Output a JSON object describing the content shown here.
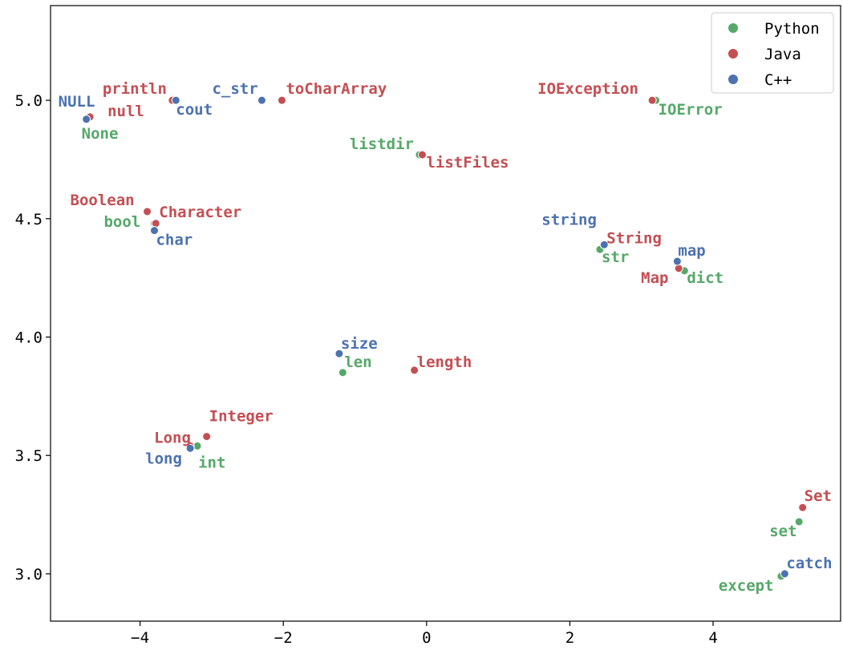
{
  "chart_data": {
    "type": "scatter",
    "title": "",
    "xlabel": "",
    "ylabel": "",
    "xlim": [
      -5.25,
      5.78
    ],
    "ylim": [
      2.8,
      5.4
    ],
    "xticks": [
      -4,
      -2,
      0,
      2,
      4
    ],
    "yticks": [
      3.0,
      3.5,
      4.0,
      4.5,
      5.0
    ],
    "xtick_labels": [
      "−4",
      "−2",
      "0",
      "2",
      "4"
    ],
    "ytick_labels": [
      "3.0",
      "3.5",
      "4.0",
      "4.5",
      "5.0"
    ],
    "grid": false,
    "legend_position": "top-right",
    "series": [
      {
        "name": "Python",
        "color": "#55a868",
        "points": [
          {
            "label": "None",
            "x": -4.75,
            "y": 4.92
          },
          {
            "label": "listdir",
            "x": -0.1,
            "y": 4.77
          },
          {
            "label": "IOError",
            "x": 3.2,
            "y": 5.0
          },
          {
            "label": "bool",
            "x": -3.8,
            "y": 4.48
          },
          {
            "label": "str",
            "x": 2.42,
            "y": 4.37
          },
          {
            "label": "dict",
            "x": 3.6,
            "y": 4.28
          },
          {
            "label": "len",
            "x": -1.17,
            "y": 3.85
          },
          {
            "label": "int",
            "x": -3.2,
            "y": 3.54
          },
          {
            "label": "set",
            "x": 5.2,
            "y": 3.22
          },
          {
            "label": "except",
            "x": 4.95,
            "y": 2.99
          }
        ]
      },
      {
        "name": "Java",
        "color": "#c44e52",
        "points": [
          {
            "label": "println",
            "x": -3.55,
            "y": 5.0
          },
          {
            "label": "null",
            "x": -4.7,
            "y": 4.93
          },
          {
            "label": "toCharArray",
            "x": -2.02,
            "y": 5.0
          },
          {
            "label": "listFiles",
            "x": -0.06,
            "y": 4.77
          },
          {
            "label": "IOException",
            "x": 3.15,
            "y": 5.0
          },
          {
            "label": "Boolean",
            "x": -3.9,
            "y": 4.53
          },
          {
            "label": "Character",
            "x": -3.78,
            "y": 4.48
          },
          {
            "label": "String",
            "x": 2.48,
            "y": 4.39
          },
          {
            "label": "Map",
            "x": 3.52,
            "y": 4.29
          },
          {
            "label": "length",
            "x": -0.17,
            "y": 3.86
          },
          {
            "label": "Integer",
            "x": -3.07,
            "y": 3.58
          },
          {
            "label": "Long",
            "x": -3.3,
            "y": 3.54
          },
          {
            "label": "Set",
            "x": 5.25,
            "y": 3.28
          }
        ]
      },
      {
        "name": "C++",
        "color": "#4c72b0",
        "points": [
          {
            "label": "NULL",
            "x": -4.75,
            "y": 4.92
          },
          {
            "label": "cout",
            "x": -3.5,
            "y": 5.0
          },
          {
            "label": "c_str",
            "x": -2.3,
            "y": 5.0
          },
          {
            "label": "char",
            "x": -3.8,
            "y": 4.45
          },
          {
            "label": "string",
            "x": 2.48,
            "y": 4.39
          },
          {
            "label": "map",
            "x": 3.5,
            "y": 4.32
          },
          {
            "label": "size",
            "x": -1.22,
            "y": 3.93
          },
          {
            "label": "long",
            "x": -3.3,
            "y": 3.53
          },
          {
            "label": "catch",
            "x": 5.0,
            "y": 3.0
          }
        ]
      }
    ]
  }
}
